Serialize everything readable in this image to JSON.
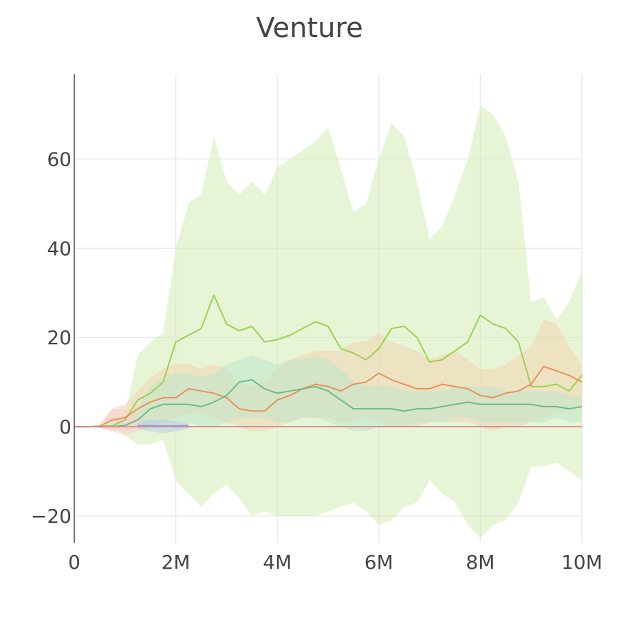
{
  "chart_data": {
    "type": "line",
    "title": "Venture",
    "xlabel": "",
    "ylabel": "",
    "xlim": [
      0,
      10000000
    ],
    "ylim": [
      -26,
      79
    ],
    "grid": true,
    "x_ticks": [
      {
        "value": 0,
        "label": "0"
      },
      {
        "value": 2000000,
        "label": "2M"
      },
      {
        "value": 4000000,
        "label": "4M"
      },
      {
        "value": 6000000,
        "label": "6M"
      },
      {
        "value": 8000000,
        "label": "8M"
      },
      {
        "value": 10000000,
        "label": "10M"
      }
    ],
    "y_ticks": [
      {
        "value": -20,
        "label": "−20"
      },
      {
        "value": 0,
        "label": "0"
      },
      {
        "value": 20,
        "label": "20"
      },
      {
        "value": 40,
        "label": "40"
      },
      {
        "value": 60,
        "label": "60"
      }
    ],
    "x_step": 250000,
    "series": [
      {
        "name": "light-green",
        "color": "#9bd14f",
        "band_color": "#d4ecb4",
        "mean": [
          0,
          0,
          0.1,
          0.2,
          1.5,
          6,
          7.5,
          10,
          19,
          20.5,
          22,
          29.5,
          23,
          21.5,
          22.5,
          19,
          19.5,
          20.5,
          22,
          23.5,
          22.5,
          17.5,
          16.5,
          15,
          17.5,
          22,
          22.5,
          20,
          14.5,
          15,
          17,
          19,
          25,
          23,
          22,
          19,
          9,
          9,
          9.5,
          8,
          11.5
        ],
        "upper": [
          0,
          0,
          0.2,
          0.5,
          3,
          16,
          19,
          21,
          40,
          50,
          52,
          65,
          55,
          52,
          55,
          52,
          58,
          60,
          62,
          64,
          67,
          58,
          48,
          50,
          60,
          68,
          65,
          55,
          42,
          45,
          52,
          60,
          72,
          70,
          65,
          55,
          28,
          29,
          24,
          28,
          35
        ],
        "lower": [
          0,
          0,
          0,
          0,
          -2,
          -4,
          -4,
          -3,
          -12,
          -15,
          -18,
          -15,
          -13,
          -16,
          -20,
          -19,
          -20,
          -20,
          -20,
          -20,
          -19,
          -18,
          -17,
          -19,
          -22,
          -21,
          -18,
          -17,
          -12,
          -15,
          -17,
          -22,
          -25,
          -22,
          -21,
          -17,
          -9,
          -9,
          -8,
          -10,
          -12
        ]
      },
      {
        "name": "orange",
        "color": "#e8905a",
        "band_color": "#f3d2b0",
        "mean": [
          0,
          0,
          0.1,
          1.5,
          2,
          4,
          5.5,
          6.5,
          6.5,
          8.5,
          8,
          7.5,
          6.5,
          4,
          3.5,
          3.5,
          6,
          7,
          8.5,
          9.5,
          9,
          8,
          9.5,
          10,
          12,
          10.5,
          9.5,
          8.5,
          8.5,
          9.5,
          9,
          8.5,
          7,
          6.5,
          7.5,
          8,
          9.5,
          13.5,
          12.5,
          11.5,
          10
        ],
        "upper": [
          0,
          0,
          0.5,
          4,
          5,
          8,
          11,
          13,
          14,
          14,
          13,
          14,
          13,
          10,
          9,
          10,
          13,
          15,
          16,
          17,
          17,
          17,
          19,
          19,
          21,
          19,
          18,
          17,
          15,
          16,
          17,
          15,
          13,
          13,
          14,
          16,
          18,
          24,
          23,
          18,
          14
        ],
        "lower": [
          0,
          0,
          -0.3,
          -1,
          -1,
          0,
          1,
          1,
          2,
          3,
          3,
          2,
          1,
          0,
          -1,
          -1,
          0,
          1,
          2,
          2,
          2,
          1,
          1,
          2,
          1,
          0,
          0,
          0,
          1,
          1,
          1,
          1,
          0,
          -1,
          0,
          0,
          1,
          2,
          3,
          4,
          4
        ]
      },
      {
        "name": "teal-green",
        "color": "#6cbb86",
        "band_color": "#bfe5cc",
        "mean": [
          0,
          0,
          0,
          0,
          0.3,
          1.5,
          4,
          5,
          5,
          5,
          4.5,
          5.5,
          7,
          10,
          10.5,
          8.5,
          7.5,
          8,
          8.5,
          9,
          8,
          6,
          4,
          4,
          4,
          4,
          3.5,
          4,
          4,
          4.5,
          5,
          5.5,
          5,
          5,
          5,
          5,
          5,
          4.5,
          4.5,
          4,
          4.5
        ],
        "upper": [
          0,
          0,
          0,
          0,
          1,
          4,
          9,
          11,
          12,
          12,
          11,
          12,
          14,
          15,
          16,
          15,
          14,
          15,
          15,
          16,
          15,
          13,
          10,
          9,
          9,
          9,
          8,
          8,
          8,
          8,
          9,
          9,
          9,
          9,
          8,
          8,
          8,
          8,
          8,
          7,
          7
        ],
        "lower": [
          0,
          0,
          0,
          0,
          -0.5,
          -0.5,
          0,
          1,
          1,
          1,
          0,
          0,
          1,
          2,
          2,
          2,
          1,
          1,
          2,
          2,
          1,
          0,
          -1,
          -1,
          0,
          0,
          0,
          1,
          1,
          1,
          2,
          2,
          1,
          1,
          1,
          1,
          1,
          1,
          2,
          1,
          1
        ]
      },
      {
        "name": "pink",
        "color": "#d98a9c",
        "band_color": "#fbd0c8",
        "mean": [
          0,
          0,
          0,
          0,
          0,
          0,
          0,
          0,
          0,
          0,
          0,
          0,
          0,
          0,
          0,
          0,
          0,
          0,
          0,
          0,
          0,
          0,
          0,
          0,
          0,
          0,
          0,
          0,
          0,
          0,
          0,
          0,
          0,
          0,
          0,
          0,
          0,
          0,
          0,
          0,
          0
        ],
        "upper": [
          0,
          0,
          0.3,
          4,
          4,
          2,
          0.5,
          0,
          0,
          0,
          0,
          0,
          0,
          0,
          0,
          0,
          0,
          0,
          0,
          0,
          0,
          0,
          0,
          0,
          0,
          0,
          0,
          0,
          0,
          0,
          0,
          0,
          0,
          0,
          0,
          0,
          0,
          0,
          0,
          0,
          0
        ],
        "lower": [
          0,
          0,
          -0.3,
          -1,
          -2,
          -1,
          0,
          0,
          0,
          0,
          0,
          0,
          0,
          0,
          0,
          0,
          0,
          0,
          0,
          0,
          0,
          0,
          0,
          0,
          0,
          0,
          0,
          0,
          0,
          0,
          0,
          0,
          0,
          0,
          0,
          0,
          0,
          0,
          0,
          0,
          0
        ]
      },
      {
        "name": "purple",
        "color": "#9c9ccf",
        "band_color": "#b9c8e4",
        "x_start": 1250000,
        "x_end": 2250000,
        "mean": [
          0.2,
          0.2,
          0.2,
          0.2,
          0.2
        ],
        "upper": [
          1,
          1.5,
          1.5,
          1.2,
          1
        ],
        "lower": [
          -0.5,
          -1,
          -1.5,
          -1,
          -0.5
        ]
      }
    ]
  }
}
